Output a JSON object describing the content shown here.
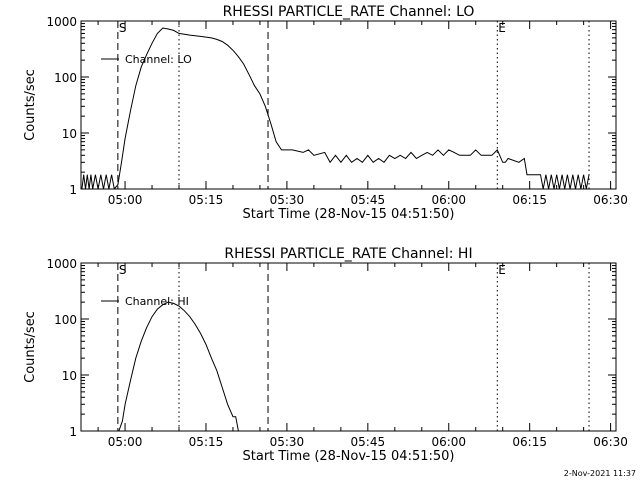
{
  "footer": {
    "timestamp": "2-Nov-2021 11:37"
  },
  "chart_data": [
    {
      "type": "line",
      "title": "RHESSI PARTICLE_RATE Channel: LO",
      "xlabel": "Start Time (28-Nov-15 04:51:50)",
      "ylabel": "Counts/sec",
      "yscale": "log",
      "xlim": [
        "04:51:50",
        "06:31:00"
      ],
      "ylim": [
        1,
        1000
      ],
      "xticks": [
        "05:00",
        "05:15",
        "05:30",
        "05:45",
        "06:00",
        "06:15",
        "06:30"
      ],
      "yticks": [
        "1",
        "10",
        "100",
        "1000"
      ],
      "legend": "top-left",
      "markers": [
        {
          "label": "S",
          "time": "04:58:40",
          "style": "dashed"
        },
        {
          "label": "",
          "time": "05:10:00",
          "style": "dotted"
        },
        {
          "label": "",
          "time": "05:26:30",
          "style": "dashed"
        },
        {
          "label": "E",
          "time": "06:09:00",
          "style": "dotted"
        },
        {
          "label": "",
          "time": "06:26:00",
          "style": "dotted"
        }
      ],
      "series": [
        {
          "name": "Channel: LO",
          "points": [
            [
              "04:52:00",
              1
            ],
            [
              "04:52:20",
              1.8
            ],
            [
              "04:52:40",
              1
            ],
            [
              "04:53:00",
              1.8
            ],
            [
              "04:53:20",
              1
            ],
            [
              "04:53:40",
              1.8
            ],
            [
              "04:54:00",
              1
            ],
            [
              "04:54:30",
              1.8
            ],
            [
              "04:55:00",
              1
            ],
            [
              "04:55:30",
              1.8
            ],
            [
              "04:56:00",
              1
            ],
            [
              "04:56:30",
              1.8
            ],
            [
              "04:57:00",
              1
            ],
            [
              "04:57:30",
              1.8
            ],
            [
              "04:58:00",
              1
            ],
            [
              "04:58:40",
              1.2
            ],
            [
              "04:59:20",
              3
            ],
            [
              "05:00:00",
              8
            ],
            [
              "05:01:00",
              25
            ],
            [
              "05:02:00",
              70
            ],
            [
              "05:03:00",
              150
            ],
            [
              "05:04:00",
              250
            ],
            [
              "05:05:00",
              400
            ],
            [
              "05:06:00",
              600
            ],
            [
              "05:07:00",
              750
            ],
            [
              "05:08:00",
              720
            ],
            [
              "05:09:00",
              680
            ],
            [
              "05:10:00",
              600
            ],
            [
              "05:12:00",
              560
            ],
            [
              "05:14:00",
              530
            ],
            [
              "05:16:00",
              500
            ],
            [
              "05:17:00",
              470
            ],
            [
              "05:18:00",
              430
            ],
            [
              "05:19:00",
              370
            ],
            [
              "05:20:00",
              300
            ],
            [
              "05:21:00",
              230
            ],
            [
              "05:22:00",
              170
            ],
            [
              "05:23:00",
              110
            ],
            [
              "05:24:00",
              70
            ],
            [
              "05:25:00",
              50
            ],
            [
              "05:26:00",
              30
            ],
            [
              "05:27:00",
              15
            ],
            [
              "05:28:00",
              7
            ],
            [
              "05:29:00",
              5
            ],
            [
              "05:31:00",
              5
            ],
            [
              "05:33:00",
              4.5
            ],
            [
              "05:34:00",
              5
            ],
            [
              "05:35:00",
              4
            ],
            [
              "05:37:00",
              4.5
            ],
            [
              "05:38:00",
              3
            ],
            [
              "05:39:00",
              4
            ],
            [
              "05:40:00",
              3
            ],
            [
              "05:41:00",
              4
            ],
            [
              "05:42:00",
              3
            ],
            [
              "05:43:00",
              3.5
            ],
            [
              "05:44:00",
              3
            ],
            [
              "05:45:00",
              4
            ],
            [
              "05:46:00",
              3
            ],
            [
              "05:47:00",
              3.5
            ],
            [
              "05:48:00",
              3
            ],
            [
              "05:49:00",
              4
            ],
            [
              "05:50:00",
              3.5
            ],
            [
              "05:51:00",
              4
            ],
            [
              "05:52:00",
              3.5
            ],
            [
              "05:53:00",
              4.5
            ],
            [
              "05:54:00",
              3.5
            ],
            [
              "05:55:00",
              4
            ],
            [
              "05:56:00",
              4.5
            ],
            [
              "05:57:00",
              4
            ],
            [
              "05:58:00",
              5
            ],
            [
              "05:59:00",
              4
            ],
            [
              "06:00:00",
              5
            ],
            [
              "06:01:00",
              4.5
            ],
            [
              "06:02:00",
              4
            ],
            [
              "06:04:00",
              4
            ],
            [
              "06:05:00",
              5
            ],
            [
              "06:06:00",
              4
            ],
            [
              "06:08:00",
              4
            ],
            [
              "06:09:00",
              5
            ],
            [
              "06:10:00",
              3
            ],
            [
              "06:10:30",
              3
            ],
            [
              "06:11:00",
              3.5
            ],
            [
              "06:13:00",
              3
            ],
            [
              "06:14:00",
              3.5
            ],
            [
              "06:14:30",
              1.8
            ],
            [
              "06:17:00",
              1.8
            ],
            [
              "06:17:30",
              1
            ],
            [
              "06:18:00",
              1.8
            ],
            [
              "06:18:30",
              1
            ],
            [
              "06:19:00",
              1.8
            ],
            [
              "06:19:30",
              1
            ],
            [
              "06:20:00",
              1.8
            ],
            [
              "06:20:30",
              1
            ],
            [
              "06:21:00",
              1.8
            ],
            [
              "06:21:30",
              1
            ],
            [
              "06:22:00",
              1.8
            ],
            [
              "06:22:30",
              1
            ],
            [
              "06:23:00",
              1.8
            ],
            [
              "06:23:30",
              1
            ],
            [
              "06:24:00",
              1.8
            ],
            [
              "06:24:30",
              1
            ],
            [
              "06:25:00",
              1.8
            ],
            [
              "06:25:30",
              1
            ],
            [
              "06:26:00",
              1.8
            ]
          ]
        }
      ]
    },
    {
      "type": "line",
      "title": "RHESSI PARTICLE_RATE Channel: HI",
      "xlabel": "Start Time (28-Nov-15 04:51:50)",
      "ylabel": "Counts/sec",
      "yscale": "log",
      "xlim": [
        "04:51:50",
        "06:31:00"
      ],
      "ylim": [
        1,
        1000
      ],
      "xticks": [
        "05:00",
        "05:15",
        "05:30",
        "05:45",
        "06:00",
        "06:15",
        "06:30"
      ],
      "yticks": [
        "1",
        "10",
        "100",
        "1000"
      ],
      "legend": "top-left",
      "markers": [
        {
          "label": "S",
          "time": "04:58:40",
          "style": "dashed"
        },
        {
          "label": "",
          "time": "05:10:00",
          "style": "dotted"
        },
        {
          "label": "",
          "time": "05:26:30",
          "style": "dashed"
        },
        {
          "label": "E",
          "time": "06:09:00",
          "style": "dotted"
        },
        {
          "label": "",
          "time": "06:26:00",
          "style": "dotted"
        }
      ],
      "series": [
        {
          "name": "Channel: HI",
          "points": [
            [
              "04:58:50",
              1
            ],
            [
              "04:59:30",
              1.5
            ],
            [
              "05:00:00",
              3
            ],
            [
              "05:01:00",
              8
            ],
            [
              "05:02:00",
              20
            ],
            [
              "05:03:00",
              40
            ],
            [
              "05:04:00",
              70
            ],
            [
              "05:05:00",
              110
            ],
            [
              "05:06:00",
              150
            ],
            [
              "05:07:00",
              180
            ],
            [
              "05:08:00",
              200
            ],
            [
              "05:09:00",
              190
            ],
            [
              "05:10:00",
              170
            ],
            [
              "05:11:00",
              140
            ],
            [
              "05:12:00",
              110
            ],
            [
              "05:13:00",
              80
            ],
            [
              "05:14:00",
              55
            ],
            [
              "05:15:00",
              35
            ],
            [
              "05:16:00",
              20
            ],
            [
              "05:17:00",
              12
            ],
            [
              "05:18:00",
              6
            ],
            [
              "05:19:00",
              3
            ],
            [
              "05:20:00",
              1.8
            ],
            [
              "05:20:30",
              1.8
            ],
            [
              "05:21:00",
              1
            ]
          ]
        }
      ]
    }
  ]
}
